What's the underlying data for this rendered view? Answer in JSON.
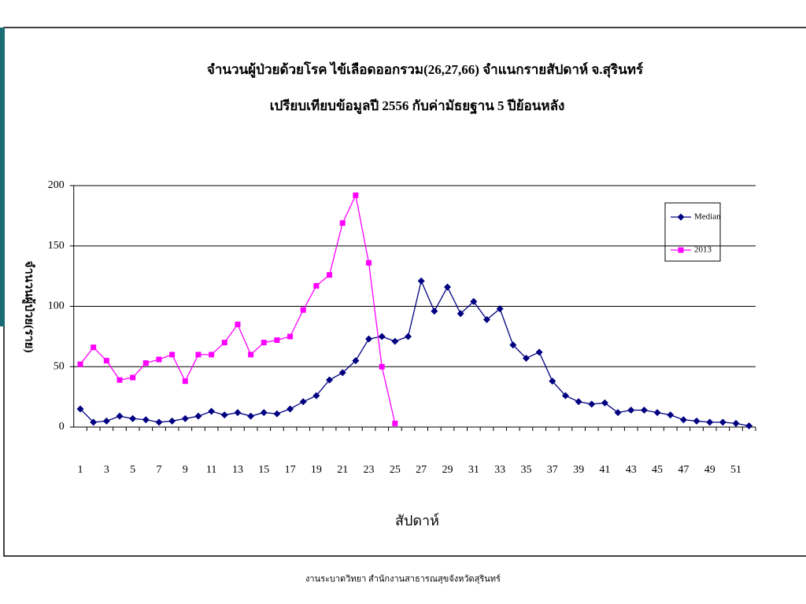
{
  "chart_data": {
    "type": "line",
    "title": "จำนวนผู้ป่วยด้วยโรค ไข้เลือดออกรวม(26,27,66) จำแนกรายสัปดาห์  จ.สุรินทร์",
    "subtitle": "เปรียบเทียบข้อมูลปี 2556 กับค่ามัธยฐาน 5 ปีย้อนหลัง",
    "xlabel": "สัปดาห์",
    "ylabel": "จำนวนผู้ป่วย(ราย)",
    "categories": [
      1,
      null,
      3,
      null,
      5,
      null,
      7,
      null,
      9,
      null,
      11,
      null,
      13,
      null,
      15,
      null,
      17,
      null,
      19,
      null,
      21,
      null,
      23,
      null,
      25,
      null,
      27,
      null,
      29,
      null,
      31,
      null,
      33,
      null,
      35,
      null,
      37,
      null,
      39,
      null,
      41,
      null,
      43,
      null,
      45,
      null,
      47,
      null,
      49,
      null,
      51,
      null
    ],
    "series": [
      {
        "name": "Median",
        "color": "#000080",
        "marker": "diamond",
        "values": [
          15,
          4,
          5,
          9,
          7,
          6,
          4,
          5,
          7,
          9,
          13,
          10,
          12,
          9,
          12,
          11,
          15,
          21,
          26,
          39,
          45,
          55,
          73,
          75,
          71,
          75,
          121,
          96,
          116,
          94,
          104,
          89,
          98,
          68,
          57,
          62,
          38,
          26,
          21,
          19,
          20,
          12,
          14,
          14,
          12,
          10,
          6,
          5,
          4,
          4,
          3,
          1
        ]
      },
      {
        "name": "2013",
        "color": "#ff00ff",
        "marker": "square",
        "values": [
          52,
          66,
          55,
          39,
          41,
          53,
          56,
          60,
          38,
          60,
          60,
          70,
          85,
          60,
          70,
          72,
          75,
          97,
          117,
          126,
          169,
          192,
          136,
          50,
          3,
          null,
          null,
          null,
          null,
          null,
          null,
          null,
          null,
          null,
          null,
          null,
          null,
          null,
          null,
          null,
          null,
          null,
          null,
          null,
          null,
          null,
          null,
          null,
          null,
          null,
          null,
          null
        ]
      }
    ],
    "ylim": [
      0,
      200
    ],
    "yticks": [
      0,
      50,
      100,
      150,
      200
    ],
    "grid": true,
    "legend": "right"
  },
  "footer": "งานระบาดวิทยา  สำนักงานสาธารณสุขจังหวัดสุรินทร์"
}
